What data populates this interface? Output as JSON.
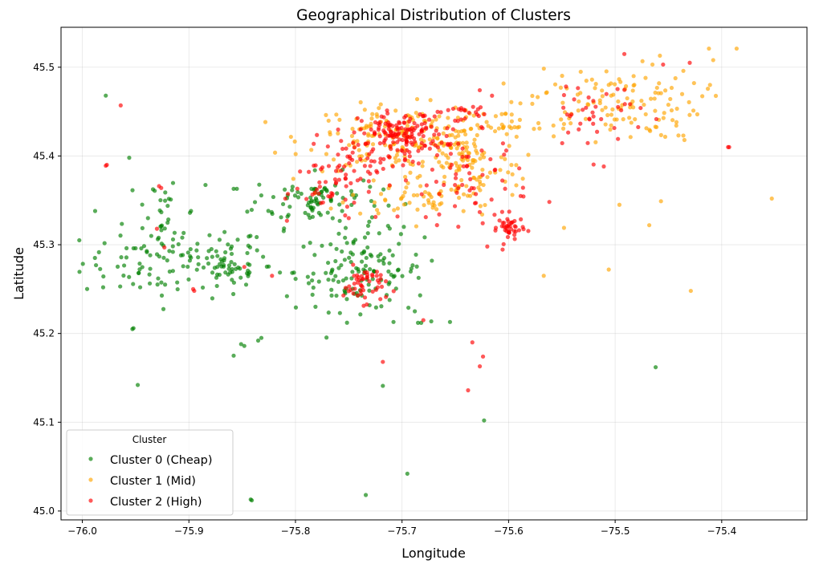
{
  "chart_data": {
    "type": "scatter",
    "title": "Geographical Distribution of Clusters",
    "xlabel": "Longitude",
    "ylabel": "Latitude",
    "xlim": [
      -76.02,
      -75.32
    ],
    "ylim": [
      44.99,
      45.545
    ],
    "xticks": [
      -76.0,
      -75.9,
      -75.8,
      -75.7,
      -75.6,
      -75.5,
      -75.4
    ],
    "xtick_labels": [
      "−76.0",
      "−75.9",
      "−75.8",
      "−75.7",
      "−75.6",
      "−75.5",
      "−75.4"
    ],
    "yticks": [
      45.0,
      45.1,
      45.2,
      45.3,
      45.4,
      45.5
    ],
    "ytick_labels": [
      "45.0",
      "45.1",
      "45.2",
      "45.3",
      "45.4",
      "45.5"
    ],
    "grid": true,
    "legend": {
      "title": "Cluster",
      "placement": "lower-left"
    },
    "series": [
      {
        "name": "Cluster 0 (Cheap)",
        "color": "#008000",
        "clusters": [
          {
            "center": [
              -75.91,
              45.28
            ],
            "spread": [
              0.045,
              0.02
            ],
            "n": 120
          },
          {
            "center": [
              -75.93,
              45.34
            ],
            "spread": [
              0.01,
              0.02
            ],
            "n": 20
          },
          {
            "center": [
              -75.78,
              45.35
            ],
            "spread": [
              0.03,
              0.015
            ],
            "n": 90
          },
          {
            "center": [
              -75.74,
              45.27
            ],
            "spread": [
              0.03,
              0.022
            ],
            "n": 130
          },
          {
            "center": [
              -75.86,
              45.275
            ],
            "spread": [
              0.015,
              0.012
            ],
            "n": 30
          }
        ],
        "points": [
          [
            -75.978,
            45.468
          ],
          [
            -75.988,
            45.338
          ],
          [
            -75.956,
            45.398
          ],
          [
            -75.952,
            45.206
          ],
          [
            -75.953,
            45.205
          ],
          [
            -75.948,
            45.142
          ],
          [
            -75.858,
            45.363
          ],
          [
            -75.855,
            45.363
          ],
          [
            -75.838,
            45.348
          ],
          [
            -75.832,
            45.195
          ],
          [
            -75.835,
            45.192
          ],
          [
            -75.842,
            45.013
          ],
          [
            -75.841,
            45.012
          ],
          [
            -75.734,
            45.018
          ],
          [
            -75.695,
            45.042
          ],
          [
            -75.718,
            45.141
          ],
          [
            -75.623,
            45.102
          ],
          [
            -75.655,
            45.213
          ],
          [
            -75.462,
            45.162
          ],
          [
            -75.858,
            45.175
          ],
          [
            -75.848,
            45.186
          ],
          [
            -75.851,
            45.188
          ],
          [
            -75.808,
            45.242
          ],
          [
            -75.898,
            45.338
          ],
          [
            -75.899,
            45.336
          ],
          [
            -75.682,
            45.212
          ],
          [
            -75.685,
            45.212
          ],
          [
            -75.688,
            45.225
          ],
          [
            -75.694,
            45.229
          ],
          [
            -75.683,
            45.243
          ],
          [
            -75.708,
            45.213
          ],
          [
            -75.703,
            45.301
          ],
          [
            -75.701,
            45.312
          ],
          [
            -75.672,
            45.282
          ]
        ]
      },
      {
        "name": "Cluster 1 (Mid)",
        "color": "#ffa500",
        "clusters": [
          {
            "center": [
              -75.7,
              45.42
            ],
            "spread": [
              0.045,
              0.018
            ],
            "n": 170
          },
          {
            "center": [
              -75.64,
              45.39
            ],
            "spread": [
              0.025,
              0.025
            ],
            "n": 90
          },
          {
            "center": [
              -75.68,
              45.355
            ],
            "spread": [
              0.035,
              0.012
            ],
            "n": 60
          },
          {
            "center": [
              -75.5,
              45.46
            ],
            "spread": [
              0.04,
              0.02
            ],
            "n": 120
          },
          {
            "center": [
              -75.61,
              45.435
            ],
            "spread": [
              0.015,
              0.012
            ],
            "n": 25
          }
        ],
        "points": [
          [
            -75.412,
            45.521
          ],
          [
            -75.386,
            45.521
          ],
          [
            -75.408,
            45.508
          ],
          [
            -75.465,
            45.503
          ],
          [
            -75.458,
            45.513
          ],
          [
            -75.436,
            45.423
          ],
          [
            -75.435,
            45.418
          ],
          [
            -75.353,
            45.352
          ],
          [
            -75.457,
            45.349
          ],
          [
            -75.468,
            45.322
          ],
          [
            -75.496,
            45.345
          ],
          [
            -75.548,
            45.319
          ],
          [
            -75.506,
            45.272
          ],
          [
            -75.567,
            45.265
          ],
          [
            -75.429,
            45.248
          ],
          [
            -75.572,
            45.437
          ],
          [
            -75.571,
            45.431
          ],
          [
            -75.551,
            45.477
          ],
          [
            -75.548,
            45.436
          ],
          [
            -75.597,
            45.439
          ]
        ]
      },
      {
        "name": "Cluster 2 (High)",
        "color": "#ff0000",
        "clusters": [
          {
            "center": [
              -75.7,
              45.425
            ],
            "spread": [
              0.02,
              0.012
            ],
            "n": 140
          },
          {
            "center": [
              -75.74,
              45.39
            ],
            "spread": [
              0.025,
              0.015
            ],
            "n": 60
          },
          {
            "center": [
              -75.64,
              45.375
            ],
            "spread": [
              0.03,
              0.025
            ],
            "n": 70
          },
          {
            "center": [
              -75.598,
              45.318
            ],
            "spread": [
              0.006,
              0.008
            ],
            "n": 40
          },
          {
            "center": [
              -75.735,
              45.255
            ],
            "spread": [
              0.01,
              0.01
            ],
            "n": 50
          },
          {
            "center": [
              -75.52,
              45.45
            ],
            "spread": [
              0.025,
              0.025
            ],
            "n": 40
          },
          {
            "center": [
              -75.77,
              45.358
            ],
            "spread": [
              0.015,
              0.01
            ],
            "n": 25
          },
          {
            "center": [
              -75.64,
              45.445
            ],
            "spread": [
              0.015,
              0.01
            ],
            "n": 25
          }
        ],
        "points": [
          [
            -75.964,
            45.457
          ],
          [
            -75.978,
            45.389
          ],
          [
            -75.977,
            45.39
          ],
          [
            -75.928,
            45.366
          ],
          [
            -75.926,
            45.364
          ],
          [
            -75.93,
            45.318
          ],
          [
            -75.923,
            45.297
          ],
          [
            -75.895,
            45.248
          ],
          [
            -75.896,
            45.25
          ],
          [
            -75.848,
            45.275
          ],
          [
            -75.822,
            45.265
          ],
          [
            -75.808,
            45.327
          ],
          [
            -75.75,
            45.33
          ],
          [
            -75.718,
            45.168
          ],
          [
            -75.68,
            45.215
          ],
          [
            -75.634,
            45.19
          ],
          [
            -75.624,
            45.174
          ],
          [
            -75.627,
            45.163
          ],
          [
            -75.638,
            45.136
          ],
          [
            -75.394,
            45.41
          ],
          [
            -75.393,
            45.41
          ],
          [
            -75.43,
            45.505
          ],
          [
            -75.455,
            45.503
          ],
          [
            -75.62,
            45.298
          ],
          [
            -75.612,
            45.319
          ]
        ]
      }
    ]
  }
}
